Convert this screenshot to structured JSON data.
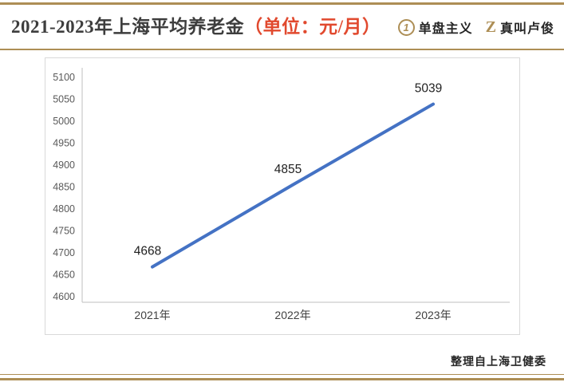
{
  "header": {
    "title_main": "2021-2023年上海平均养老金",
    "title_unit": "（单位：元/月）",
    "logos": [
      {
        "icon": "circle-1-icon",
        "glyph": "1",
        "label": "单盘主义"
      },
      {
        "icon": "z-icon",
        "glyph": "Z",
        "label": "真叫卢俊"
      }
    ]
  },
  "footer": {
    "source": "整理自上海卫健委"
  },
  "colors": {
    "accent_gold": "#ad8e55",
    "title_red": "#e1492e",
    "line_blue": "#4472c4"
  },
  "chart_data": {
    "type": "line",
    "title": "2021-2023年上海平均养老金（单位：元/月）",
    "categories": [
      "2021年",
      "2022年",
      "2023年"
    ],
    "values": [
      4668,
      4855,
      5039
    ],
    "ylim": [
      4600,
      5100
    ],
    "ytick_step": 50,
    "grid": false,
    "legend": "none",
    "data_labels": true,
    "line_color": "#4472c4"
  }
}
